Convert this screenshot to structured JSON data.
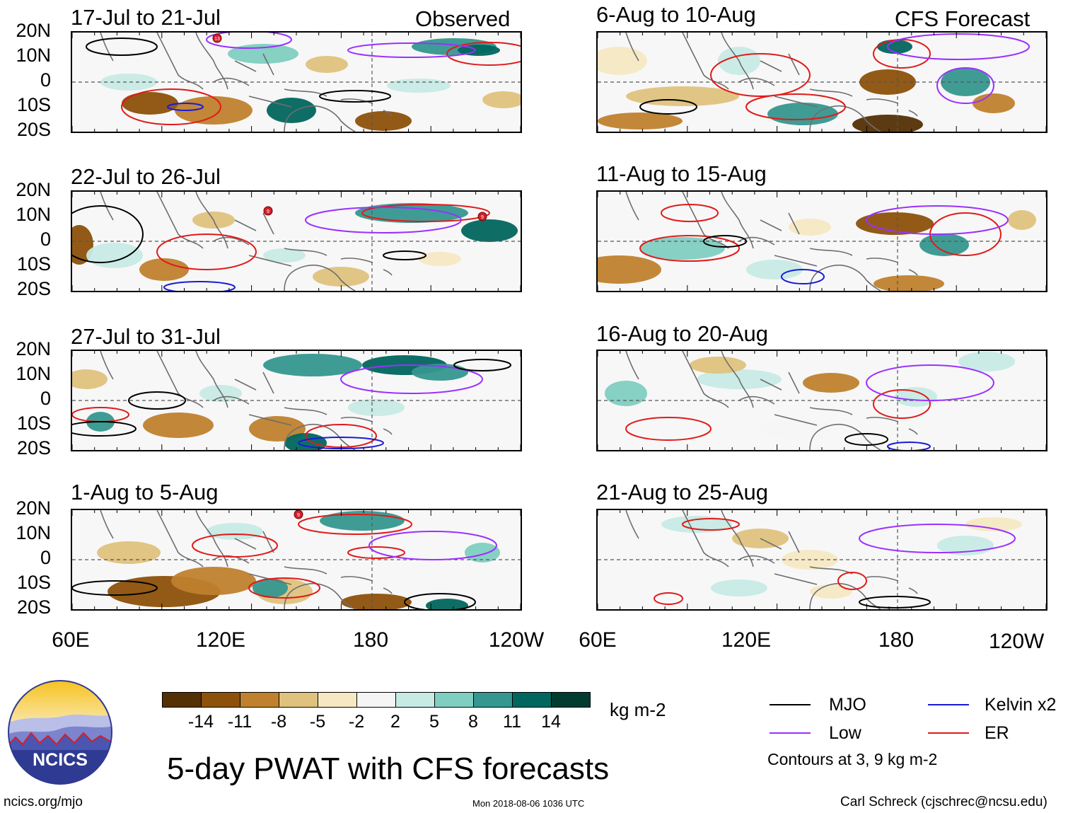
{
  "map": {
    "main_title": "5-day PWAT with CFS forecasts",
    "left_header": "Observed",
    "right_header": "CFS Forecast",
    "lat_labels": [
      "20N",
      "10N",
      "0",
      "10S",
      "20S"
    ],
    "lon_labels": [
      "60E",
      "120E",
      "180",
      "120W"
    ],
    "panels_left": [
      {
        "title": "17-Jul to 21-Jul"
      },
      {
        "title": "22-Jul to 26-Jul"
      },
      {
        "title": "27-Jul to 31-Jul"
      },
      {
        "title": "1-Aug to 5-Aug"
      }
    ],
    "panels_right": [
      {
        "title": "6-Aug to 10-Aug"
      },
      {
        "title": "11-Aug to 15-Aug"
      },
      {
        "title": "16-Aug to 20-Aug"
      },
      {
        "title": "21-Aug to 25-Aug"
      }
    ],
    "storm_labels": [
      "13",
      "9",
      "9",
      "9"
    ],
    "colorbar": {
      "colors": [
        "#543005",
        "#8c510a",
        "#bf812d",
        "#dfc27d",
        "#f6e8c3",
        "#f5f5f5",
        "#c7eae5",
        "#80cdc1",
        "#35978f",
        "#01665e",
        "#003c30"
      ],
      "ticks": [
        "-14",
        "-11",
        "-8",
        "-5",
        "-2",
        "2",
        "5",
        "8",
        "11",
        "14"
      ],
      "units": "kg m-2"
    },
    "legend": {
      "items": [
        {
          "label": "MJO",
          "color": "#000000"
        },
        {
          "label": "Kelvin x2",
          "color": "#1a1ad6"
        },
        {
          "label": "Low",
          "color": "#9b30ff"
        },
        {
          "label": "ER",
          "color": "#e11a1a"
        }
      ],
      "contour_note": "Contours at 3, 9 kg m-2"
    },
    "logo": {
      "text": "NCICS"
    },
    "footer": {
      "left": "ncics.org/mjo",
      "center": "Mon 2018-08-06 1036 UTC",
      "right": "Carl Schreck (cjschrec@ncsu.edu)"
    }
  }
}
